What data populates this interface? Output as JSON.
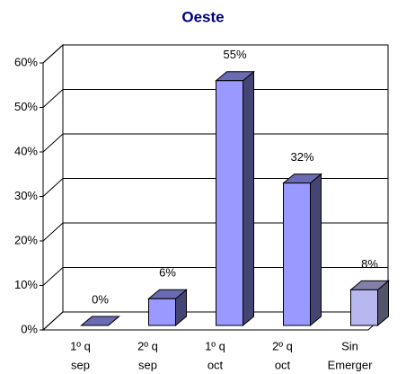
{
  "chart_data": {
    "type": "bar3d",
    "title": "Oeste",
    "categories": [
      [
        "1º q",
        "sep"
      ],
      [
        "2º q",
        "sep"
      ],
      [
        "1º q",
        "oct"
      ],
      [
        "2º q",
        "oct"
      ],
      [
        "Sin",
        "Emerger"
      ]
    ],
    "values": [
      0,
      6,
      55,
      32,
      8
    ],
    "value_labels": [
      "0%",
      "6%",
      "55%",
      "32%",
      "8%"
    ],
    "colors": [
      "#9999ff",
      "#9999ff",
      "#9999ff",
      "#9999ff",
      "#b8b8f0"
    ],
    "ylim": [
      0,
      60
    ],
    "yticks": [
      {
        "value": 0,
        "label": "0%"
      },
      {
        "value": 10,
        "label": "10%"
      },
      {
        "value": 20,
        "label": "20%"
      },
      {
        "value": 30,
        "label": "30%"
      },
      {
        "value": 40,
        "label": "40%"
      },
      {
        "value": 50,
        "label": "50%"
      },
      {
        "value": 60,
        "label": "60%"
      }
    ],
    "grid": true
  }
}
